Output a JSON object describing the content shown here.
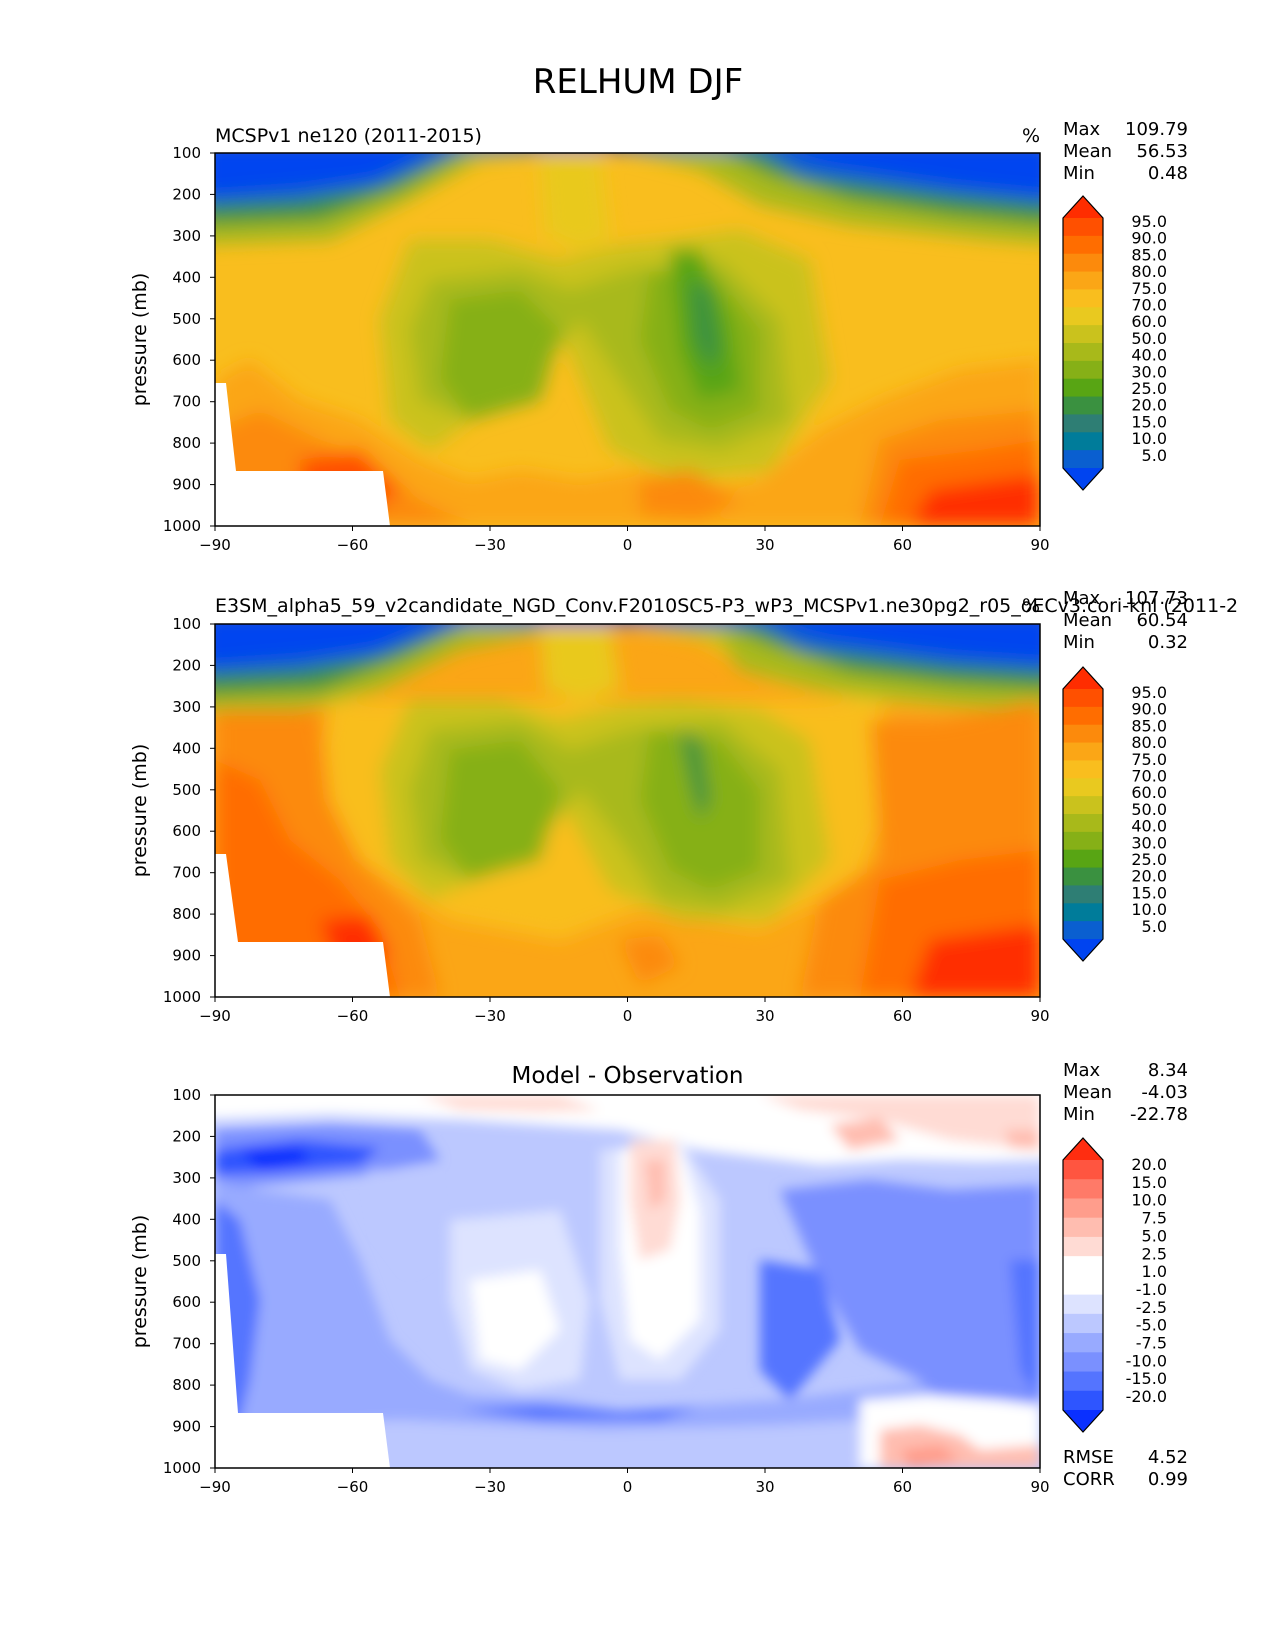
{
  "figure_title": "RELHUM DJF",
  "chart_data": [
    {
      "type": "heatmap",
      "panel": "top",
      "title": "MCSPv1 ne120 (2011-2015)",
      "units": "%",
      "ylabel": "pressure (mb)",
      "xticks": [
        "−90",
        "−60",
        "−30",
        "0",
        "30",
        "60",
        "90"
      ],
      "yticks": [
        "100",
        "200",
        "300",
        "400",
        "500",
        "600",
        "700",
        "800",
        "900",
        "1000"
      ],
      "xlim": [
        -90,
        90
      ],
      "ylim": [
        1000,
        100
      ],
      "stats": {
        "max_label": "Max",
        "max": "109.79",
        "mean_label": "Mean",
        "mean": "56.53",
        "min_label": "Min",
        "min": "0.48"
      },
      "colorbar_labels": [
        "95.0",
        "90.0",
        "85.0",
        "80.0",
        "75.0",
        "70.0",
        "60.0",
        "50.0",
        "40.0",
        "30.0",
        "25.0",
        "20.0",
        "15.0",
        "10.0",
        "5.0"
      ],
      "colorbar_colors": [
        "#ff2d00",
        "#ff5000",
        "#ff6d00",
        "#fc8a0c",
        "#fba616",
        "#f9be1e",
        "#e9c91f",
        "#cac21d",
        "#a8b91a",
        "#86b017",
        "#58a514",
        "#3a9140",
        "#2e7e74",
        "#007c9a",
        "#0a5fd0",
        "#0044f0"
      ]
    },
    {
      "type": "heatmap",
      "panel": "middle",
      "title": "E3SM_alpha5_59_v2candidate_NGD_Conv.F2010SC5-P3_wP3_MCSPv1.ne30pg2_r05_oECv3.cori-knl (2011-2",
      "units": "%",
      "ylabel": "pressure (mb)",
      "xticks": [
        "−90",
        "−60",
        "−30",
        "0",
        "30",
        "60",
        "90"
      ],
      "yticks": [
        "100",
        "200",
        "300",
        "400",
        "500",
        "600",
        "700",
        "800",
        "900",
        "1000"
      ],
      "xlim": [
        -90,
        90
      ],
      "ylim": [
        1000,
        100
      ],
      "stats": {
        "max_label": "Max",
        "max": "107.73",
        "mean_label": "Mean",
        "mean": "60.54",
        "min_label": "Min",
        "min": "0.32"
      },
      "colorbar_labels": [
        "95.0",
        "90.0",
        "85.0",
        "80.0",
        "75.0",
        "70.0",
        "60.0",
        "50.0",
        "40.0",
        "30.0",
        "25.0",
        "20.0",
        "15.0",
        "10.0",
        "5.0"
      ],
      "colorbar_colors": [
        "#ff2d00",
        "#ff5000",
        "#ff6d00",
        "#fc8a0c",
        "#fba616",
        "#f9be1e",
        "#e9c91f",
        "#cac21d",
        "#a8b91a",
        "#86b017",
        "#58a514",
        "#3a9140",
        "#2e7e74",
        "#007c9a",
        "#0a5fd0",
        "#0044f0"
      ]
    },
    {
      "type": "heatmap",
      "panel": "bottom",
      "title": "Model - Observation",
      "ylabel": "pressure (mb)",
      "xticks": [
        "−90",
        "−60",
        "−30",
        "0",
        "30",
        "60",
        "90"
      ],
      "yticks": [
        "100",
        "200",
        "300",
        "400",
        "500",
        "600",
        "700",
        "800",
        "900",
        "1000"
      ],
      "xlim": [
        -90,
        90
      ],
      "ylim": [
        1000,
        100
      ],
      "stats": {
        "max_label": "Max",
        "max": "8.34",
        "mean_label": "Mean",
        "mean": "-4.03",
        "min_label": "Min",
        "min": "-22.78"
      },
      "extra_stats": {
        "rmse_label": "RMSE",
        "rmse": "4.52",
        "corr_label": "CORR",
        "corr": "0.99"
      },
      "colorbar_labels": [
        "20.0",
        "15.0",
        "10.0",
        "7.5",
        "5.0",
        "2.5",
        "1.0",
        "-1.0",
        "-2.5",
        "-5.0",
        "-7.5",
        "-10.0",
        "-15.0",
        "-20.0"
      ],
      "colorbar_colors": [
        "#ff2d10",
        "#ff5540",
        "#ff7a68",
        "#ff9d8c",
        "#ffbdb0",
        "#ffdbd4",
        "#ffffff",
        "#ffffff",
        "#dde3ff",
        "#bcc8ff",
        "#98aaff",
        "#7a90ff",
        "#5474ff",
        "#2e55ff",
        "#0a30ff"
      ]
    }
  ]
}
